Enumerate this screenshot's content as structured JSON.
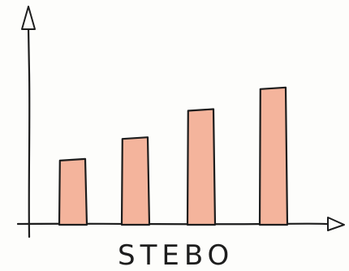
{
  "chart_data": {
    "type": "bar",
    "title": "",
    "xlabel": "STEBO",
    "ylabel": "",
    "categories": [
      "",
      "",
      "",
      ""
    ],
    "values": [
      30,
      40,
      53,
      63
    ],
    "ylim": [
      0,
      100
    ],
    "grid": false,
    "colors": {
      "bar_fill": "#f4b49c",
      "stroke": "#1d1d1d",
      "background": "#fdfdfb"
    }
  }
}
